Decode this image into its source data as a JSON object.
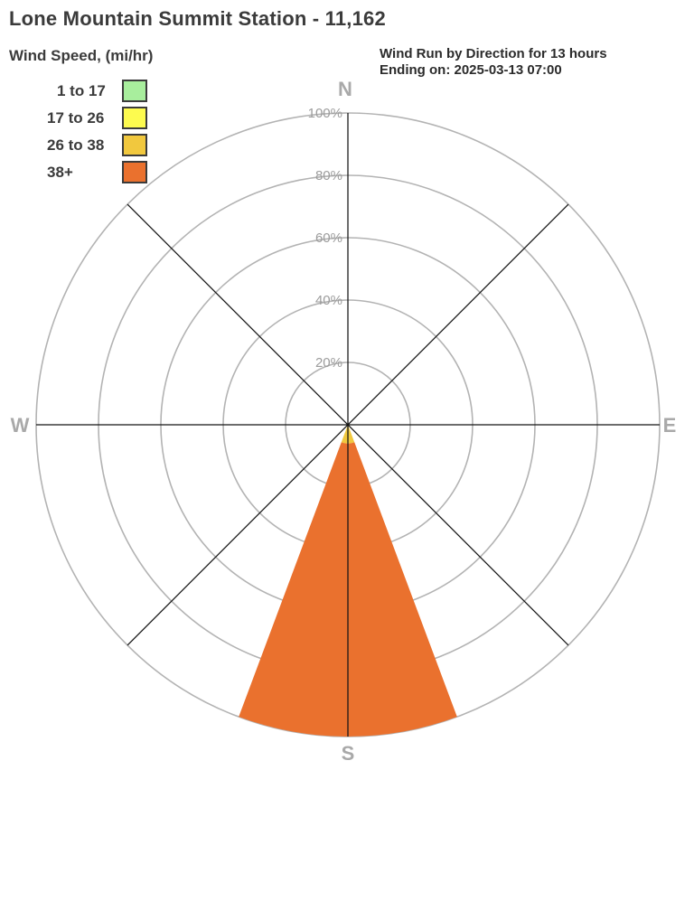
{
  "page": {
    "title": "Lone Mountain Summit Station - 11,162"
  },
  "legend": {
    "title": "Wind Speed, (mi/hr)",
    "items": [
      {
        "label": "1 to 17",
        "color": "#a8ee9d"
      },
      {
        "label": "17 to 26",
        "color": "#fdfb4f"
      },
      {
        "label": "26 to 38",
        "color": "#f1c83e"
      },
      {
        "label": "38+",
        "color": "#ea712e"
      }
    ]
  },
  "chart_header": {
    "line1": "Wind Run by Direction for 13 hours",
    "line2": "Ending on: 2025-03-13 07:00"
  },
  "chart_data": {
    "type": "wind_rose",
    "title": "Wind Run by Direction for 13 hours",
    "subtitle": "Ending on: 2025-03-13 07:00",
    "station": "Lone Mountain Summit Station - 11,162",
    "period_hours": 13,
    "ending_on": "2025-03-13 07:00",
    "units": "percent of wind run",
    "radial_max": 100,
    "radial_ticks": [
      20,
      40,
      60,
      80,
      100
    ],
    "radial_tick_labels": [
      "20%",
      "40%",
      "60%",
      "80%",
      "100%"
    ],
    "compass_labels": {
      "n": "N",
      "e": "E",
      "s": "S",
      "w": "W"
    },
    "spoke_azimuths_deg": [
      0,
      45,
      90,
      135,
      180,
      225,
      270,
      315
    ],
    "sector_width_deg": 41,
    "speed_bins": [
      {
        "label": "1 to 17",
        "color": "#a8ee9d"
      },
      {
        "label": "17 to 26",
        "color": "#fdfb4f"
      },
      {
        "label": "26 to 38",
        "color": "#f1c83e"
      },
      {
        "label": "38+",
        "color": "#ea712e"
      }
    ],
    "directions": [
      {
        "direction": "S",
        "azimuth_deg": 180,
        "total_pct": 100,
        "segments": [
          {
            "bin": "26 to 38",
            "value_pct": 6,
            "color": "#f1c83e"
          },
          {
            "bin": "38+",
            "value_pct": 94,
            "color": "#ea712e"
          }
        ]
      }
    ],
    "colors": {
      "ring": "#b3b3b3",
      "spoke": "#141414",
      "compass_label": "#a9a9a9",
      "tick_label": "#9c9c9c",
      "background": "#ffffff"
    },
    "layout": {
      "grid": "polar",
      "rings": 5,
      "legend_position": "top-left"
    }
  }
}
